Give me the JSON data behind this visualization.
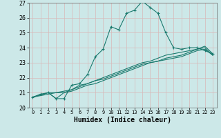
{
  "title": "",
  "xlabel": "Humidex (Indice chaleur)",
  "xlim": [
    -0.5,
    23.5
  ],
  "ylim": [
    20,
    27
  ],
  "xticks": [
    0,
    1,
    2,
    3,
    4,
    5,
    6,
    7,
    8,
    9,
    10,
    11,
    12,
    13,
    14,
    15,
    16,
    17,
    18,
    19,
    20,
    21,
    22,
    23
  ],
  "yticks": [
    20,
    21,
    22,
    23,
    24,
    25,
    26,
    27
  ],
  "bg_color": "#cce8e8",
  "grid_color": "#d8b8b8",
  "line_color": "#1a7a6e",
  "line1_x": [
    0,
    1,
    2,
    3,
    4,
    5,
    6,
    7,
    8,
    9,
    10,
    11,
    12,
    13,
    14,
    15,
    16,
    17,
    18,
    19,
    20,
    21,
    22,
    23
  ],
  "line1_y": [
    20.7,
    20.9,
    21.0,
    20.6,
    20.6,
    21.5,
    21.6,
    22.2,
    23.4,
    23.9,
    25.4,
    25.2,
    26.3,
    26.5,
    27.1,
    26.7,
    26.3,
    25.0,
    24.0,
    23.9,
    24.0,
    24.0,
    23.8,
    23.6
  ],
  "line2_x": [
    0,
    2,
    3,
    4,
    5,
    6,
    7,
    8,
    9,
    10,
    11,
    12,
    13,
    14,
    15,
    16,
    17,
    18,
    19,
    20,
    21,
    22,
    23
  ],
  "line2_y": [
    20.7,
    21.0,
    21.0,
    21.0,
    21.2,
    21.5,
    21.6,
    21.8,
    21.9,
    22.1,
    22.3,
    22.5,
    22.7,
    22.9,
    23.0,
    23.1,
    23.3,
    23.4,
    23.5,
    23.7,
    23.9,
    24.1,
    23.6
  ],
  "line3_x": [
    0,
    2,
    3,
    4,
    5,
    6,
    7,
    8,
    9,
    10,
    11,
    12,
    13,
    14,
    15,
    16,
    17,
    18,
    19,
    20,
    21,
    22,
    23
  ],
  "line3_y": [
    20.7,
    21.0,
    20.6,
    21.0,
    21.1,
    21.3,
    21.5,
    21.6,
    21.8,
    22.0,
    22.2,
    22.4,
    22.6,
    22.8,
    23.0,
    23.1,
    23.2,
    23.3,
    23.4,
    23.6,
    23.8,
    23.9,
    23.5
  ],
  "line4_x": [
    0,
    1,
    2,
    3,
    4,
    5,
    6,
    7,
    8,
    9,
    10,
    11,
    12,
    13,
    14,
    15,
    16,
    17,
    18,
    19,
    20,
    21,
    22,
    23
  ],
  "line4_y": [
    20.7,
    20.8,
    20.9,
    21.0,
    21.1,
    21.2,
    21.4,
    21.6,
    21.8,
    22.0,
    22.2,
    22.4,
    22.6,
    22.8,
    23.0,
    23.1,
    23.3,
    23.5,
    23.6,
    23.7,
    23.8,
    23.9,
    24.0,
    23.5
  ],
  "marker": "+"
}
